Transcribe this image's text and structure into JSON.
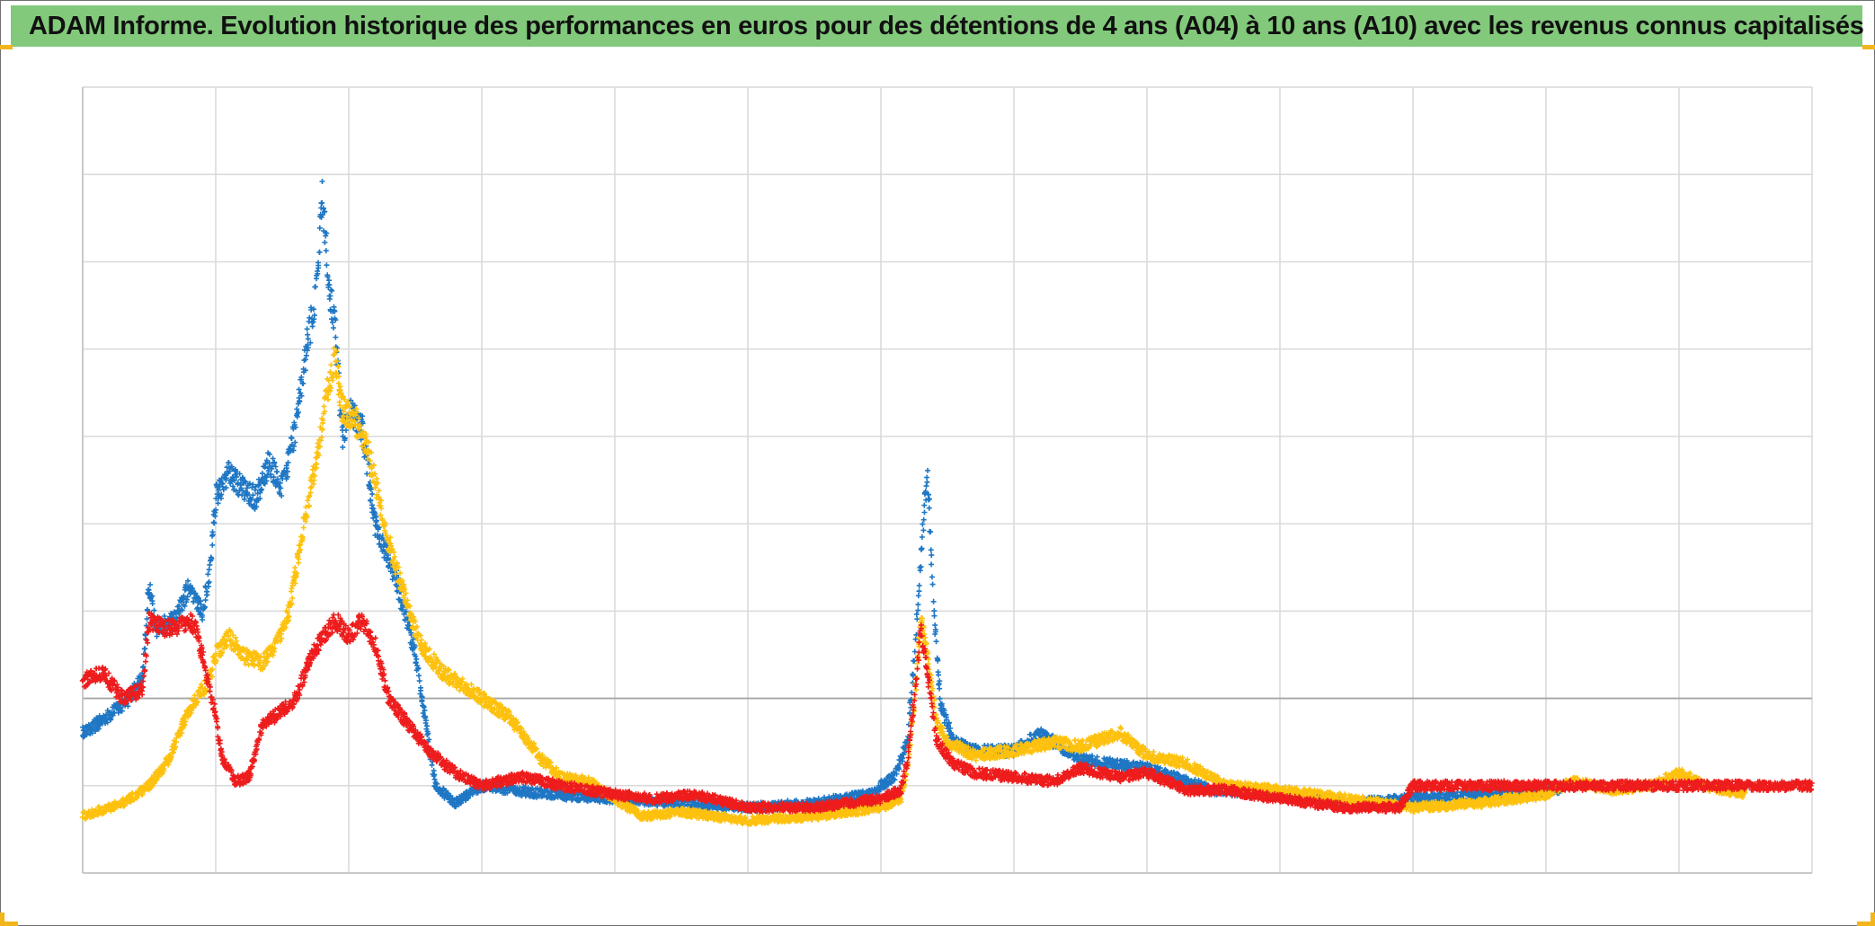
{
  "title": "ADAM Informe. Evolution historique des performances en euros pour des détentions de 4 ans (A04) à 10 ans (A10) avec les revenus connus capitalisés",
  "colors": {
    "title_background": "#82c97b",
    "corner_accent": "#f2b51c",
    "grid": "#d9d9d9",
    "baseline": "#a6a6a6"
  },
  "chart_data": {
    "type": "scatter",
    "marker": "plus",
    "grid": true,
    "legend": "none",
    "x_axis": {
      "labels_shown": false,
      "range": [
        0,
        13
      ],
      "major_gridlines": 13
    },
    "y_axis": {
      "labels_shown": false,
      "range": [
        0,
        9
      ],
      "major_gridlines": 9,
      "reference_line": 2
    },
    "series": [
      {
        "color": "#1f77c4",
        "end_x": 11.1,
        "points": [
          [
            0,
            1.6
          ],
          [
            0.2,
            1.8
          ],
          [
            0.35,
            2.0
          ],
          [
            0.45,
            2.3
          ],
          [
            0.5,
            3.3
          ],
          [
            0.55,
            2.8
          ],
          [
            0.7,
            2.9
          ],
          [
            0.8,
            3.3
          ],
          [
            0.9,
            3.0
          ],
          [
            0.95,
            3.4
          ],
          [
            1.0,
            4.3
          ],
          [
            1.1,
            4.6
          ],
          [
            1.2,
            4.4
          ],
          [
            1.3,
            4.3
          ],
          [
            1.4,
            4.7
          ],
          [
            1.5,
            4.4
          ],
          [
            1.6,
            5.1
          ],
          [
            1.68,
            6.0
          ],
          [
            1.75,
            6.6
          ],
          [
            1.8,
            7.7
          ],
          [
            1.85,
            6.8
          ],
          [
            1.9,
            6.2
          ],
          [
            1.95,
            5.0
          ],
          [
            2.0,
            5.3
          ],
          [
            2.1,
            5.1
          ],
          [
            2.2,
            4.0
          ],
          [
            2.35,
            3.4
          ],
          [
            2.5,
            2.5
          ],
          [
            2.65,
            1.0
          ],
          [
            2.8,
            0.8
          ],
          [
            3.0,
            1.0
          ],
          [
            3.5,
            0.9
          ],
          [
            4.0,
            0.85
          ],
          [
            4.5,
            0.8
          ],
          [
            5.0,
            0.75
          ],
          [
            5.5,
            0.8
          ],
          [
            5.9,
            0.9
          ],
          [
            6.1,
            1.1
          ],
          [
            6.2,
            1.5
          ],
          [
            6.25,
            2.5
          ],
          [
            6.3,
            3.6
          ],
          [
            6.35,
            4.6
          ],
          [
            6.4,
            3.0
          ],
          [
            6.45,
            1.9
          ],
          [
            6.55,
            1.5
          ],
          [
            6.7,
            1.4
          ],
          [
            7.0,
            1.4
          ],
          [
            7.2,
            1.6
          ],
          [
            7.5,
            1.3
          ],
          [
            8.0,
            1.2
          ],
          [
            8.5,
            0.95
          ],
          [
            9.0,
            0.9
          ],
          [
            9.5,
            0.8
          ],
          [
            10.0,
            0.85
          ],
          [
            10.5,
            0.9
          ],
          [
            11.1,
            0.95
          ]
        ]
      },
      {
        "color": "#fdc10e",
        "end_x": 12.5,
        "points": [
          [
            0,
            0.65
          ],
          [
            0.3,
            0.8
          ],
          [
            0.5,
            1.0
          ],
          [
            0.65,
            1.3
          ],
          [
            0.75,
            1.7
          ],
          [
            0.85,
            2.0
          ],
          [
            0.95,
            2.2
          ],
          [
            1.0,
            2.5
          ],
          [
            1.1,
            2.7
          ],
          [
            1.2,
            2.5
          ],
          [
            1.35,
            2.4
          ],
          [
            1.45,
            2.6
          ],
          [
            1.55,
            3.0
          ],
          [
            1.65,
            3.9
          ],
          [
            1.75,
            4.7
          ],
          [
            1.8,
            5.1
          ],
          [
            1.85,
            5.6
          ],
          [
            1.9,
            5.9
          ],
          [
            1.95,
            5.3
          ],
          [
            2.05,
            5.2
          ],
          [
            2.15,
            4.8
          ],
          [
            2.3,
            3.8
          ],
          [
            2.45,
            3.0
          ],
          [
            2.55,
            2.6
          ],
          [
            2.7,
            2.3
          ],
          [
            2.9,
            2.1
          ],
          [
            3.1,
            1.9
          ],
          [
            3.2,
            1.8
          ],
          [
            3.3,
            1.6
          ],
          [
            3.45,
            1.3
          ],
          [
            3.6,
            1.1
          ],
          [
            3.8,
            1.05
          ],
          [
            4.0,
            0.85
          ],
          [
            4.2,
            0.65
          ],
          [
            4.5,
            0.7
          ],
          [
            5.0,
            0.6
          ],
          [
            5.5,
            0.65
          ],
          [
            6.0,
            0.75
          ],
          [
            6.15,
            0.85
          ],
          [
            6.2,
            1.2
          ],
          [
            6.25,
            1.9
          ],
          [
            6.3,
            2.9
          ],
          [
            6.35,
            2.5
          ],
          [
            6.42,
            1.7
          ],
          [
            6.5,
            1.5
          ],
          [
            6.7,
            1.35
          ],
          [
            7.0,
            1.4
          ],
          [
            7.3,
            1.5
          ],
          [
            7.5,
            1.45
          ],
          [
            7.8,
            1.6
          ],
          [
            8.0,
            1.35
          ],
          [
            8.3,
            1.25
          ],
          [
            8.6,
            1.0
          ],
          [
            9.0,
            0.95
          ],
          [
            9.5,
            0.85
          ],
          [
            10.0,
            0.75
          ],
          [
            10.5,
            0.8
          ],
          [
            11.0,
            0.9
          ],
          [
            11.2,
            1.05
          ],
          [
            11.5,
            0.95
          ],
          [
            11.8,
            1.0
          ],
          [
            12.0,
            1.15
          ],
          [
            12.2,
            1.0
          ],
          [
            12.5,
            0.9
          ]
        ]
      },
      {
        "color": "#ee1c1c",
        "end_x": 13,
        "points": [
          [
            0,
            2.2
          ],
          [
            0.15,
            2.3
          ],
          [
            0.3,
            2.0
          ],
          [
            0.45,
            2.1
          ],
          [
            0.5,
            2.9
          ],
          [
            0.6,
            2.8
          ],
          [
            0.7,
            2.8
          ],
          [
            0.8,
            2.9
          ],
          [
            0.85,
            2.8
          ],
          [
            0.9,
            2.5
          ],
          [
            1.0,
            1.8
          ],
          [
            1.05,
            1.3
          ],
          [
            1.15,
            1.05
          ],
          [
            1.25,
            1.1
          ],
          [
            1.35,
            1.7
          ],
          [
            1.45,
            1.8
          ],
          [
            1.6,
            2.0
          ],
          [
            1.7,
            2.4
          ],
          [
            1.8,
            2.7
          ],
          [
            1.9,
            2.9
          ],
          [
            2.0,
            2.7
          ],
          [
            2.1,
            2.9
          ],
          [
            2.2,
            2.6
          ],
          [
            2.3,
            2.0
          ],
          [
            2.45,
            1.7
          ],
          [
            2.6,
            1.4
          ],
          [
            2.8,
            1.15
          ],
          [
            3.0,
            1.0
          ],
          [
            3.3,
            1.1
          ],
          [
            3.6,
            1.0
          ],
          [
            4.0,
            0.9
          ],
          [
            4.3,
            0.85
          ],
          [
            4.6,
            0.9
          ],
          [
            5.0,
            0.75
          ],
          [
            5.5,
            0.75
          ],
          [
            6.0,
            0.85
          ],
          [
            6.15,
            0.95
          ],
          [
            6.2,
            1.3
          ],
          [
            6.25,
            2.0
          ],
          [
            6.3,
            2.8
          ],
          [
            6.35,
            2.3
          ],
          [
            6.42,
            1.5
          ],
          [
            6.55,
            1.25
          ],
          [
            6.7,
            1.15
          ],
          [
            7.0,
            1.1
          ],
          [
            7.3,
            1.05
          ],
          [
            7.5,
            1.2
          ],
          [
            7.8,
            1.1
          ],
          [
            8.0,
            1.15
          ],
          [
            8.3,
            0.95
          ],
          [
            8.6,
            0.95
          ],
          [
            9.0,
            0.85
          ],
          [
            9.5,
            0.75
          ],
          [
            9.9,
            0.75
          ],
          [
            10.0,
            1.0
          ],
          [
            10.5,
            1.0
          ],
          [
            11.0,
            1.0
          ],
          [
            11.5,
            1.0
          ],
          [
            12.0,
            1.0
          ],
          [
            12.5,
            1.0
          ],
          [
            13.0,
            1.0
          ]
        ]
      }
    ]
  }
}
